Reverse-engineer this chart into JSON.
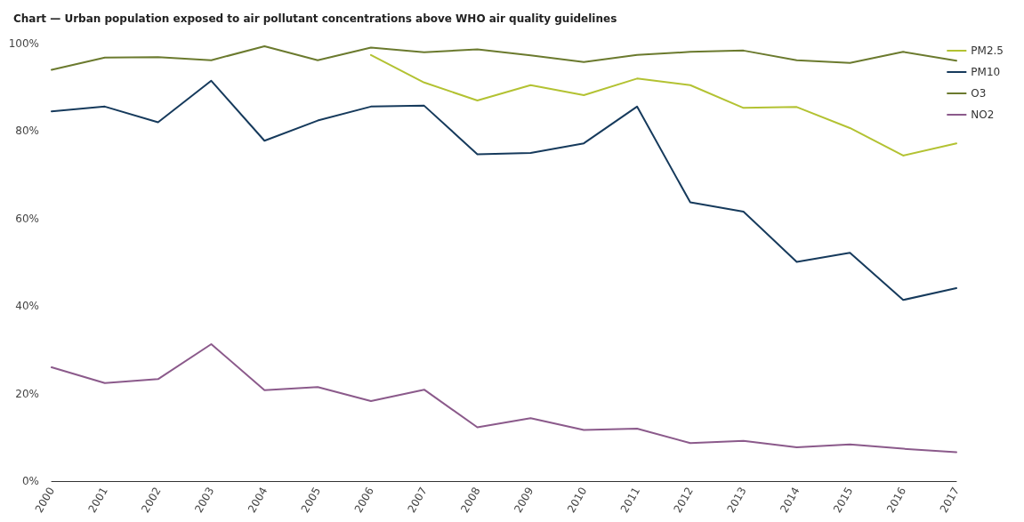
{
  "chart_data": {
    "type": "line",
    "title": "Chart — Urban population exposed to air pollutant concentrations above WHO air quality guidelines",
    "categories": [
      "2000",
      "2001",
      "2002",
      "2003",
      "2004",
      "2005",
      "2006",
      "2007",
      "2008",
      "2009",
      "2010",
      "2011",
      "2012",
      "2013",
      "2014",
      "2015",
      "2016",
      "2017"
    ],
    "series": [
      {
        "name": "PM2.5",
        "color": "#b3c232",
        "values": [
          null,
          null,
          null,
          null,
          null,
          null,
          97.4,
          91.1,
          87.0,
          90.5,
          88.2,
          92.0,
          90.5,
          85.3,
          85.5,
          80.7,
          74.4,
          77.2
        ]
      },
      {
        "name": "PM10",
        "color": "#163a5c",
        "values": [
          84.5,
          85.6,
          82.0,
          91.5,
          77.8,
          82.4,
          85.6,
          85.8,
          74.7,
          75.0,
          77.2,
          85.6,
          63.7,
          61.6,
          50.1,
          52.2,
          41.4,
          44.1
        ]
      },
      {
        "name": "O3",
        "color": "#6b7a2e",
        "values": [
          94.0,
          96.8,
          96.9,
          96.2,
          99.4,
          96.2,
          99.1,
          98.0,
          98.7,
          97.3,
          95.8,
          97.4,
          98.1,
          98.4,
          96.2,
          95.6,
          98.1,
          96.1
        ]
      },
      {
        "name": "NO2",
        "color": "#8b5a8b",
        "values": [
          26.0,
          22.4,
          23.3,
          31.3,
          20.8,
          21.5,
          18.3,
          20.9,
          12.3,
          14.4,
          11.7,
          12.0,
          8.7,
          9.2,
          7.7,
          8.4,
          7.4,
          6.6
        ]
      }
    ],
    "ylim": [
      0,
      100
    ],
    "yticks": [
      {
        "value": 0,
        "label": "0%"
      },
      {
        "value": 20,
        "label": "20%"
      },
      {
        "value": 40,
        "label": "40%"
      },
      {
        "value": 60,
        "label": "60%"
      },
      {
        "value": 80,
        "label": "80%"
      },
      {
        "value": 100,
        "label": "100%"
      }
    ],
    "grid": false,
    "legend": "top right",
    "marker": "none",
    "line_style": "solid"
  }
}
